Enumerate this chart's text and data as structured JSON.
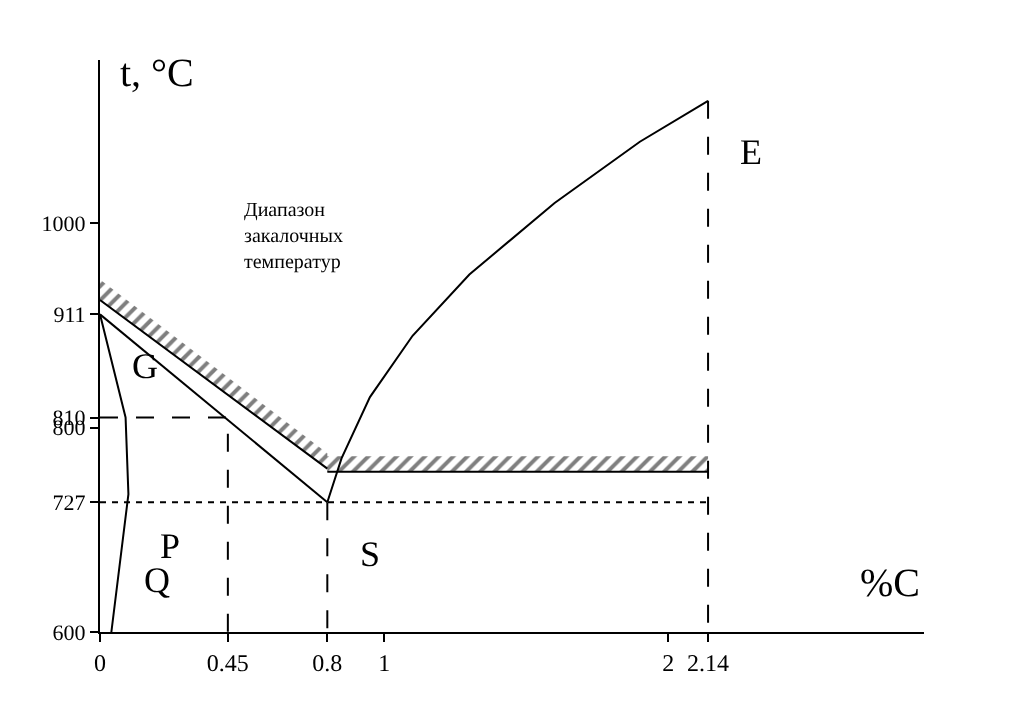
{
  "chart_data": {
    "type": "line",
    "xlabel": "%C",
    "ylabel": "t, °C",
    "xlim": [
      0,
      2.9
    ],
    "ylim": [
      600,
      1160
    ],
    "xticks": [
      0,
      0.45,
      0.8,
      1,
      2,
      2.14
    ],
    "yticks": [
      600,
      727,
      800,
      810,
      911,
      1000
    ],
    "marker": "none",
    "series": [
      {
        "color": "#000000",
        "x": [
          0,
          0.8
        ],
        "values": [
          911,
          727
        ]
      },
      {
        "color": "#000000",
        "x": [
          0,
          0.09,
          0.1,
          0.04
        ],
        "values": [
          911,
          810,
          735,
          600
        ]
      },
      {
        "color": "#000000",
        "x": [
          0.8,
          0.85,
          0.95,
          1.1,
          1.3,
          1.6,
          1.9,
          2.14
        ],
        "values": [
          727,
          770,
          830,
          890,
          950,
          1020,
          1080,
          1120
        ]
      },
      {
        "color": "#000000",
        "x": [
          0,
          0.8
        ],
        "values": [
          925,
          760
        ],
        "lower": [
          925,
          760
        ],
        "upper": [
          945,
          775
        ]
      },
      {
        "color": "#000000",
        "x": [
          0.8,
          2.14
        ],
        "values": [
          757,
          757
        ],
        "lower": [
          757,
          757
        ],
        "upper": [
          772,
          772
        ]
      },
      {
        "color": "#000000",
        "line_style": "dotted",
        "x": [
          0,
          2.14
        ],
        "values": [
          727,
          727
        ]
      },
      {
        "color": "#000000",
        "line_style": "dashed",
        "x": [
          0,
          0.45,
          0.45
        ],
        "values": [
          810,
          810,
          600
        ]
      },
      {
        "color": "#000000",
        "line_style": "dashed",
        "x": [
          0.8,
          0.8
        ],
        "values": [
          727,
          600
        ]
      },
      {
        "color": "#000000",
        "line_style": "dashed",
        "x": [
          2.14,
          2.14
        ],
        "values": [
          1120,
          600
        ]
      }
    ],
    "annotations": [
      {
        "text": "G",
        "x": 0,
        "y": 911
      },
      {
        "text": "P",
        "x": 0.1,
        "y": 735
      },
      {
        "text": "Q",
        "x": 0.04,
        "y": 600
      },
      {
        "text": "S",
        "x": 0.8,
        "y": 727
      },
      {
        "text": "E",
        "x": 2.14,
        "y": 1120
      },
      "Диапазон\nзакалочных\nтемператур"
    ]
  }
}
